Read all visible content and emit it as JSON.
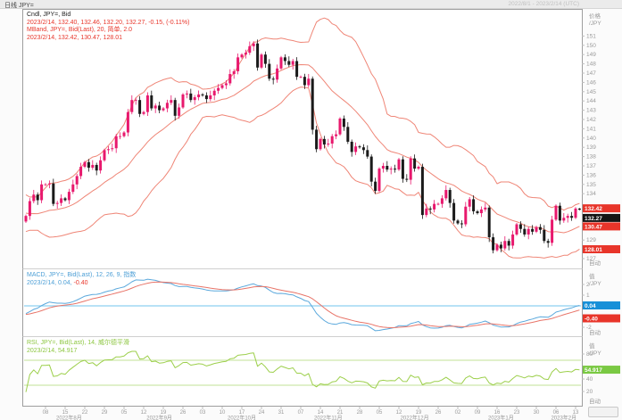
{
  "window": {
    "tab_label": "日线 JPY=",
    "date_range": "2022/8/1 - 2023/2/14 (UTC)"
  },
  "colors": {
    "up_candle": "#e8186d",
    "down_candle": "#1a1a1a",
    "bollinger": "#ef8576",
    "macd_line": "#5aa8dc",
    "macd_signal": "#e87468",
    "macd_zero_line": "#8ed0f0",
    "rsi_line": "#9ccf4a",
    "rsi_level_line": "#c2e296",
    "axis_text": "#9a9a9a",
    "box_red": "#e8352a",
    "box_black": "#141414",
    "box_blue": "#1790d8",
    "box_green": "#7ac943",
    "panel_border": "#9e9e9e",
    "separator": "#cfcfcf"
  },
  "legends": {
    "price": {
      "line1": "Cndl, JPY=, Bid",
      "line2": "2023/2/14, 132.40, 132.46, 132.20, 132.27, -0.15, (-0.11%)",
      "line3": "MBand, JPY=, Bid(Last), 20, 简单, 2.0",
      "line4": "2023/2/14, 132.42, 130.47, 128.01"
    },
    "macd": {
      "line1": "MACD, JPY=, Bid(Last), 12, 26, 9, 指数",
      "line2_prefix": "2023/2/14, 0.04, ",
      "line2_value": "-0.40"
    },
    "rsi": {
      "line1": "RSI, JPY=, Bid(Last), 14, 威尔德平滑",
      "line2": "2023/2/14, 54.917"
    }
  },
  "axes": {
    "price_title": "价格",
    "value_title": "值",
    "unit": "/JPY",
    "auto_label": "自动",
    "price_ticks": [
      151,
      150,
      149,
      148,
      147,
      146,
      145,
      144,
      143,
      142,
      141,
      140,
      139,
      138,
      137,
      136,
      135,
      134,
      133,
      132,
      131,
      130,
      129,
      128,
      127
    ],
    "macd_ticks": [
      2,
      1,
      -1,
      -2
    ],
    "rsi_ticks": [
      80,
      60,
      40,
      20
    ],
    "price_boxes": [
      {
        "label": "132.42",
        "value": 132.42,
        "color": "box_red"
      },
      {
        "label": "132.27",
        "value": 132.27,
        "color": "box_black"
      },
      {
        "label": "130.47",
        "value": 130.47,
        "color": "box_red"
      },
      {
        "label": "128.01",
        "value": 128.01,
        "color": "box_red"
      }
    ],
    "macd_boxes": [
      {
        "label": "0.04",
        "value": 0.04,
        "color": "box_blue"
      },
      {
        "label": "-0.40",
        "value": -0.4,
        "color": "box_red"
      }
    ],
    "rsi_boxes": [
      {
        "label": "54.917",
        "value": 54.917,
        "color": "box_green"
      }
    ],
    "x_week_ticks": [
      {
        "i": 5,
        "label": "08"
      },
      {
        "i": 10,
        "label": "15"
      },
      {
        "i": 15,
        "label": "22"
      },
      {
        "i": 20,
        "label": "29"
      },
      {
        "i": 25,
        "label": "05"
      },
      {
        "i": 30,
        "label": "12"
      },
      {
        "i": 35,
        "label": "19"
      },
      {
        "i": 40,
        "label": "26"
      },
      {
        "i": 45,
        "label": "03"
      },
      {
        "i": 50,
        "label": "10"
      },
      {
        "i": 55,
        "label": "17"
      },
      {
        "i": 60,
        "label": "24"
      },
      {
        "i": 65,
        "label": "31"
      },
      {
        "i": 70,
        "label": "07"
      },
      {
        "i": 75,
        "label": "14"
      },
      {
        "i": 80,
        "label": "21"
      },
      {
        "i": 85,
        "label": "28"
      },
      {
        "i": 90,
        "label": "05"
      },
      {
        "i": 95,
        "label": "12"
      },
      {
        "i": 100,
        "label": "19"
      },
      {
        "i": 105,
        "label": "26"
      },
      {
        "i": 110,
        "label": "02"
      },
      {
        "i": 115,
        "label": "09"
      },
      {
        "i": 120,
        "label": "16"
      },
      {
        "i": 125,
        "label": "23"
      },
      {
        "i": 130,
        "label": "30"
      },
      {
        "i": 135,
        "label": "06"
      },
      {
        "i": 140,
        "label": "13"
      }
    ],
    "x_month_labels": [
      {
        "i": 11,
        "label": "2022年8月"
      },
      {
        "i": 34,
        "label": "2022年9月"
      },
      {
        "i": 55,
        "label": "2022年10月"
      },
      {
        "i": 77,
        "label": "2022年11月"
      },
      {
        "i": 99,
        "label": "2022年12月"
      },
      {
        "i": 121,
        "label": "2023年1月"
      },
      {
        "i": 137,
        "label": "2023年2月"
      }
    ]
  },
  "chart_data": {
    "type": "candlestick",
    "instrument": "JPY=",
    "frequency": "daily-weekdays",
    "start_date": "2022/8/1",
    "end_date": "2023/2/14",
    "price_ylim": [
      126.2,
      153.7
    ],
    "macd_ylim": [
      -3.2,
      3.4
    ],
    "rsi_ylim": [
      0,
      100
    ],
    "rsi_levels": [
      70,
      30
    ],
    "indicators": {
      "bollinger": {
        "period": 20,
        "type": "简单",
        "deviations": 2.0
      },
      "macd": {
        "fast": 12,
        "slow": 26,
        "signal": 9,
        "method": "指数"
      },
      "rsi": {
        "period": 14,
        "method": "威尔德平滑"
      }
    },
    "first_open": 131.0,
    "last_ohlc": {
      "open": 132.4,
      "high": 132.46,
      "low": 132.2,
      "close": 132.27,
      "change": -0.15,
      "change_pct": "-0.11%"
    },
    "pre_window_closes_for_indicators": [
      134.6,
      134.2,
      133.8,
      133.4,
      133.0,
      132.7,
      132.4,
      132.1,
      131.8,
      131.6,
      131.4,
      131.2,
      131.1,
      131.0,
      130.9,
      130.9,
      131.0,
      131.1,
      131.3,
      131.5
    ],
    "closes": [
      131.6,
      133.2,
      133.9,
      133.3,
      135.0,
      135.0,
      135.1,
      132.9,
      133.0,
      133.5,
      133.3,
      134.2,
      135.0,
      135.9,
      136.9,
      137.4,
      136.8,
      137.1,
      136.5,
      137.6,
      138.7,
      138.8,
      138.9,
      140.2,
      140.2,
      140.6,
      142.8,
      144.1,
      144.1,
      142.6,
      142.8,
      144.6,
      143.2,
      143.5,
      143.0,
      143.2,
      143.8,
      144.1,
      142.4,
      143.3,
      144.7,
      144.8,
      144.1,
      144.4,
      144.7,
      144.6,
      144.2,
      144.6,
      145.1,
      145.4,
      145.7,
      145.9,
      146.9,
      147.2,
      148.7,
      149.0,
      149.2,
      149.9,
      150.2,
      147.6,
      149.0,
      148.0,
      146.4,
      146.3,
      147.5,
      148.7,
      148.3,
      147.9,
      148.3,
      146.6,
      146.6,
      145.7,
      146.4,
      140.9,
      138.8,
      139.9,
      139.3,
      139.4,
      140.2,
      140.4,
      142.1,
      141.2,
      139.6,
      138.5,
      139.1,
      139.0,
      138.7,
      138.0,
      135.3,
      134.3,
      136.7,
      137.0,
      136.6,
      136.7,
      136.6,
      137.7,
      135.6,
      135.5,
      137.8,
      136.7,
      136.9,
      131.7,
      132.4,
      132.3,
      132.9,
      132.9,
      133.5,
      134.4,
      133.0,
      131.1,
      130.8,
      130.7,
      132.6,
      133.4,
      132.1,
      131.9,
      132.3,
      132.5,
      129.3,
      127.9,
      128.5,
      128.1,
      128.9,
      128.4,
      129.6,
      130.7,
      130.2,
      129.6,
      130.2,
      129.9,
      130.4,
      130.1,
      128.9,
      128.7,
      131.2,
      132.7,
      131.1,
      131.4,
      131.6,
      131.4,
      132.4,
      132.27
    ]
  }
}
